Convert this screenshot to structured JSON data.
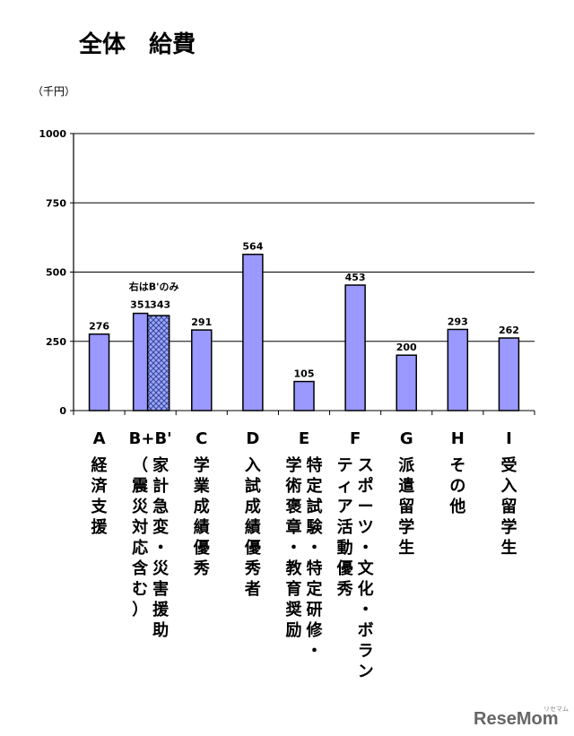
{
  "chart_data": {
    "type": "bar",
    "title": "全体　給費",
    "unit_label": "（千円）",
    "ylim": [
      0,
      1000
    ],
    "yticks": [
      0,
      250,
      500,
      750,
      1000
    ],
    "grid": true,
    "note": "右はB'のみ",
    "categories": [
      {
        "code": "A",
        "label": [
          "経済支援"
        ]
      },
      {
        "code": "B+B'",
        "label": [
          "家計急変・災害援助",
          "（震災対応含む）"
        ]
      },
      {
        "code": "C",
        "label": [
          "学業成績優秀"
        ]
      },
      {
        "code": "D",
        "label": [
          "入試成績優秀者"
        ]
      },
      {
        "code": "E",
        "label": [
          "特定試験・特定研修・",
          "学術褒章・教育奨励"
        ]
      },
      {
        "code": "F",
        "label": [
          "スポーツ・文化・ボラン",
          "ティア活動優秀"
        ]
      },
      {
        "code": "G",
        "label": [
          "派遣留学生"
        ]
      },
      {
        "code": "H",
        "label": [
          "その他"
        ]
      },
      {
        "code": "I",
        "label": [
          "受入留学生"
        ]
      }
    ],
    "series": [
      {
        "values": [
          276,
          351,
          291,
          564,
          105,
          453,
          200,
          293,
          262
        ],
        "color": "#9999ff"
      },
      {
        "values": [
          null,
          343,
          null,
          null,
          null,
          null,
          null,
          null,
          null
        ],
        "color": "#9999ff",
        "pattern": "crosshatch"
      }
    ]
  },
  "watermark": {
    "text": "ReseMom",
    "small": "リセマム"
  }
}
